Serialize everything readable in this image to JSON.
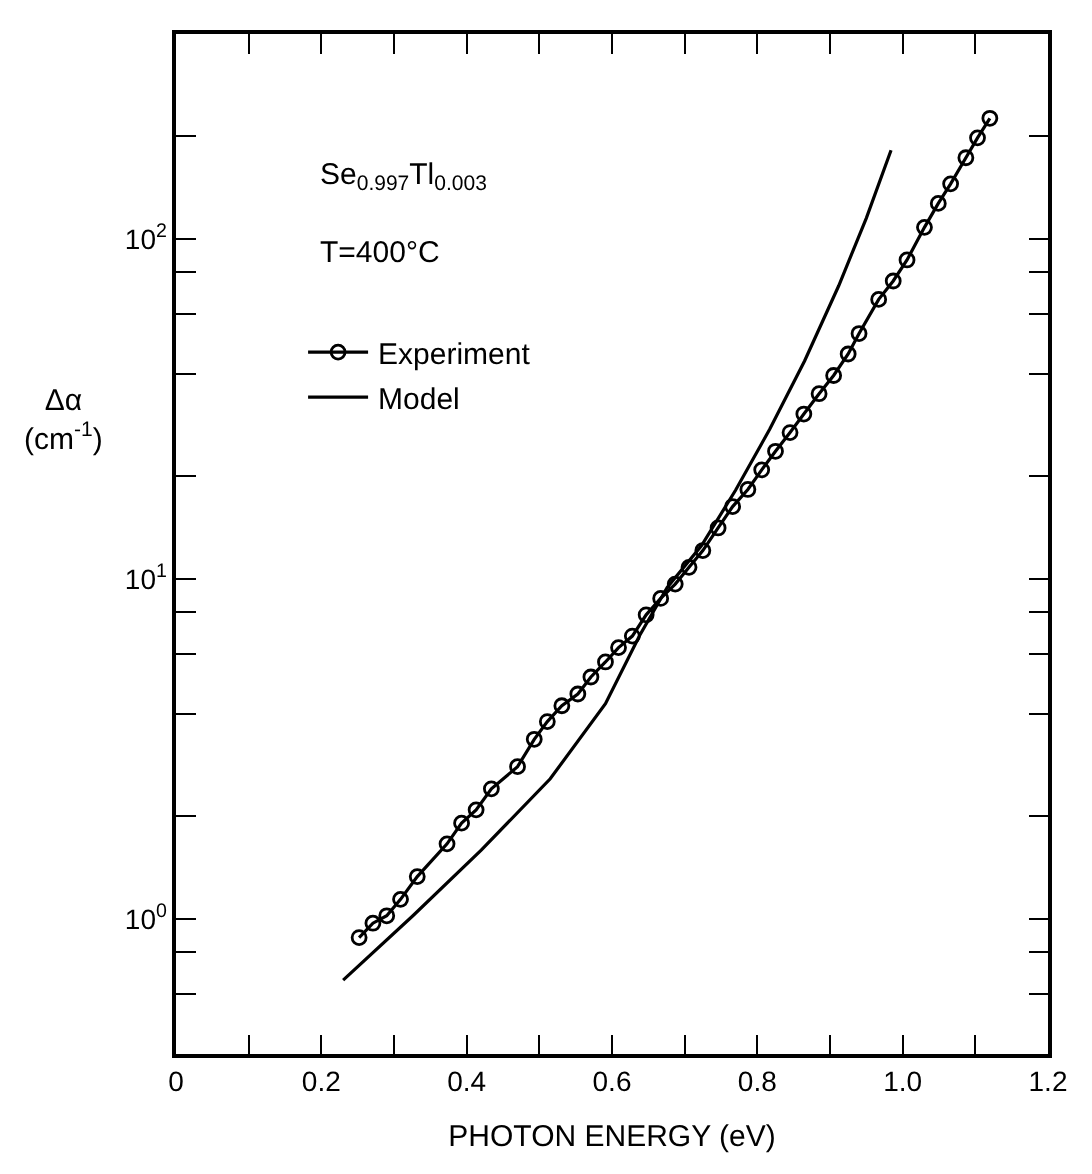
{
  "chart_data": {
    "type": "line",
    "xlabel": "PHOTON ENERGY (eV)",
    "ylabel": "Δα\n(cm$^{-1}$)",
    "annotations": [
      "Se$_{0.997}$Tl$_{0.003}$",
      "T=400°C"
    ],
    "log": "y",
    "legend": "top left",
    "xlim": [
      0,
      1.2
    ],
    "ylim": [
      0.4,
      400
    ],
    "xticks": [
      0,
      {
        "value": 0.1,
        "label": null
      },
      0.2,
      {
        "value": 0.3,
        "label": null
      },
      0.4,
      {
        "value": 0.5,
        "label": null
      },
      0.6,
      {
        "value": 0.7,
        "label": null
      },
      0.8,
      {
        "value": 0.9,
        "label": null
      },
      {
        "value": 1.0,
        "label": "1.0"
      },
      {
        "value": 1.1,
        "label": null
      },
      1.2
    ],
    "yticks": [
      {
        "value": 0.6,
        "label": null
      },
      {
        "value": 0.8,
        "label": null
      },
      {
        "value": 1,
        "label": "10$^{0}$"
      },
      {
        "value": 2,
        "label": null
      },
      {
        "value": 4,
        "label": null
      },
      {
        "value": 6,
        "label": null
      },
      {
        "value": 8,
        "label": null
      },
      {
        "value": 10,
        "label": "10$^{1}$"
      },
      {
        "value": 20,
        "label": null
      },
      {
        "value": 40,
        "label": null
      },
      {
        "value": 60,
        "label": null
      },
      {
        "value": 80,
        "label": null
      },
      {
        "value": 100,
        "label": "10$^{2}$"
      },
      {
        "value": 200,
        "label": null
      }
    ],
    "series": [
      {
        "name": "Experiment",
        "color": "#000000",
        "marker": "circle",
        "x": [
          0.252,
          0.271,
          0.29,
          0.309,
          0.332,
          0.373,
          0.393,
          0.413,
          0.434,
          0.47,
          0.493,
          0.511,
          0.531,
          0.553,
          0.571,
          0.591,
          0.609,
          0.628,
          0.647,
          0.667,
          0.687,
          0.706,
          0.725,
          0.746,
          0.766,
          0.787,
          0.806,
          0.825,
          0.845,
          0.864,
          0.885,
          0.905,
          0.925,
          0.94,
          0.967,
          0.987,
          1.006,
          1.03,
          1.049,
          1.066,
          1.087,
          1.103,
          1.12
        ],
        "values": [
          0.88,
          0.97,
          1.02,
          1.14,
          1.33,
          1.66,
          1.91,
          2.09,
          2.41,
          2.8,
          3.37,
          3.8,
          4.23,
          4.58,
          5.14,
          5.69,
          6.27,
          6.78,
          7.83,
          8.75,
          9.64,
          10.8,
          12.1,
          14.1,
          16.3,
          18.3,
          20.9,
          23.7,
          26.9,
          30.5,
          35,
          39.6,
          45.8,
          52.6,
          66.3,
          75.1,
          86.6,
          108,
          127,
          145,
          173,
          198,
          226
        ]
      },
      {
        "name": "Model",
        "color": "#000000",
        "marker": "none",
        "x": [
          0.23,
          0.326,
          0.42,
          0.515,
          0.591,
          0.638,
          0.676,
          0.723,
          0.77,
          0.817,
          0.865,
          0.912,
          0.95,
          0.984
        ],
        "values": [
          0.66,
          1.02,
          1.59,
          2.58,
          4.29,
          6.81,
          9.42,
          12.5,
          18.2,
          27.5,
          43.7,
          72.7,
          115,
          182
        ]
      }
    ]
  }
}
